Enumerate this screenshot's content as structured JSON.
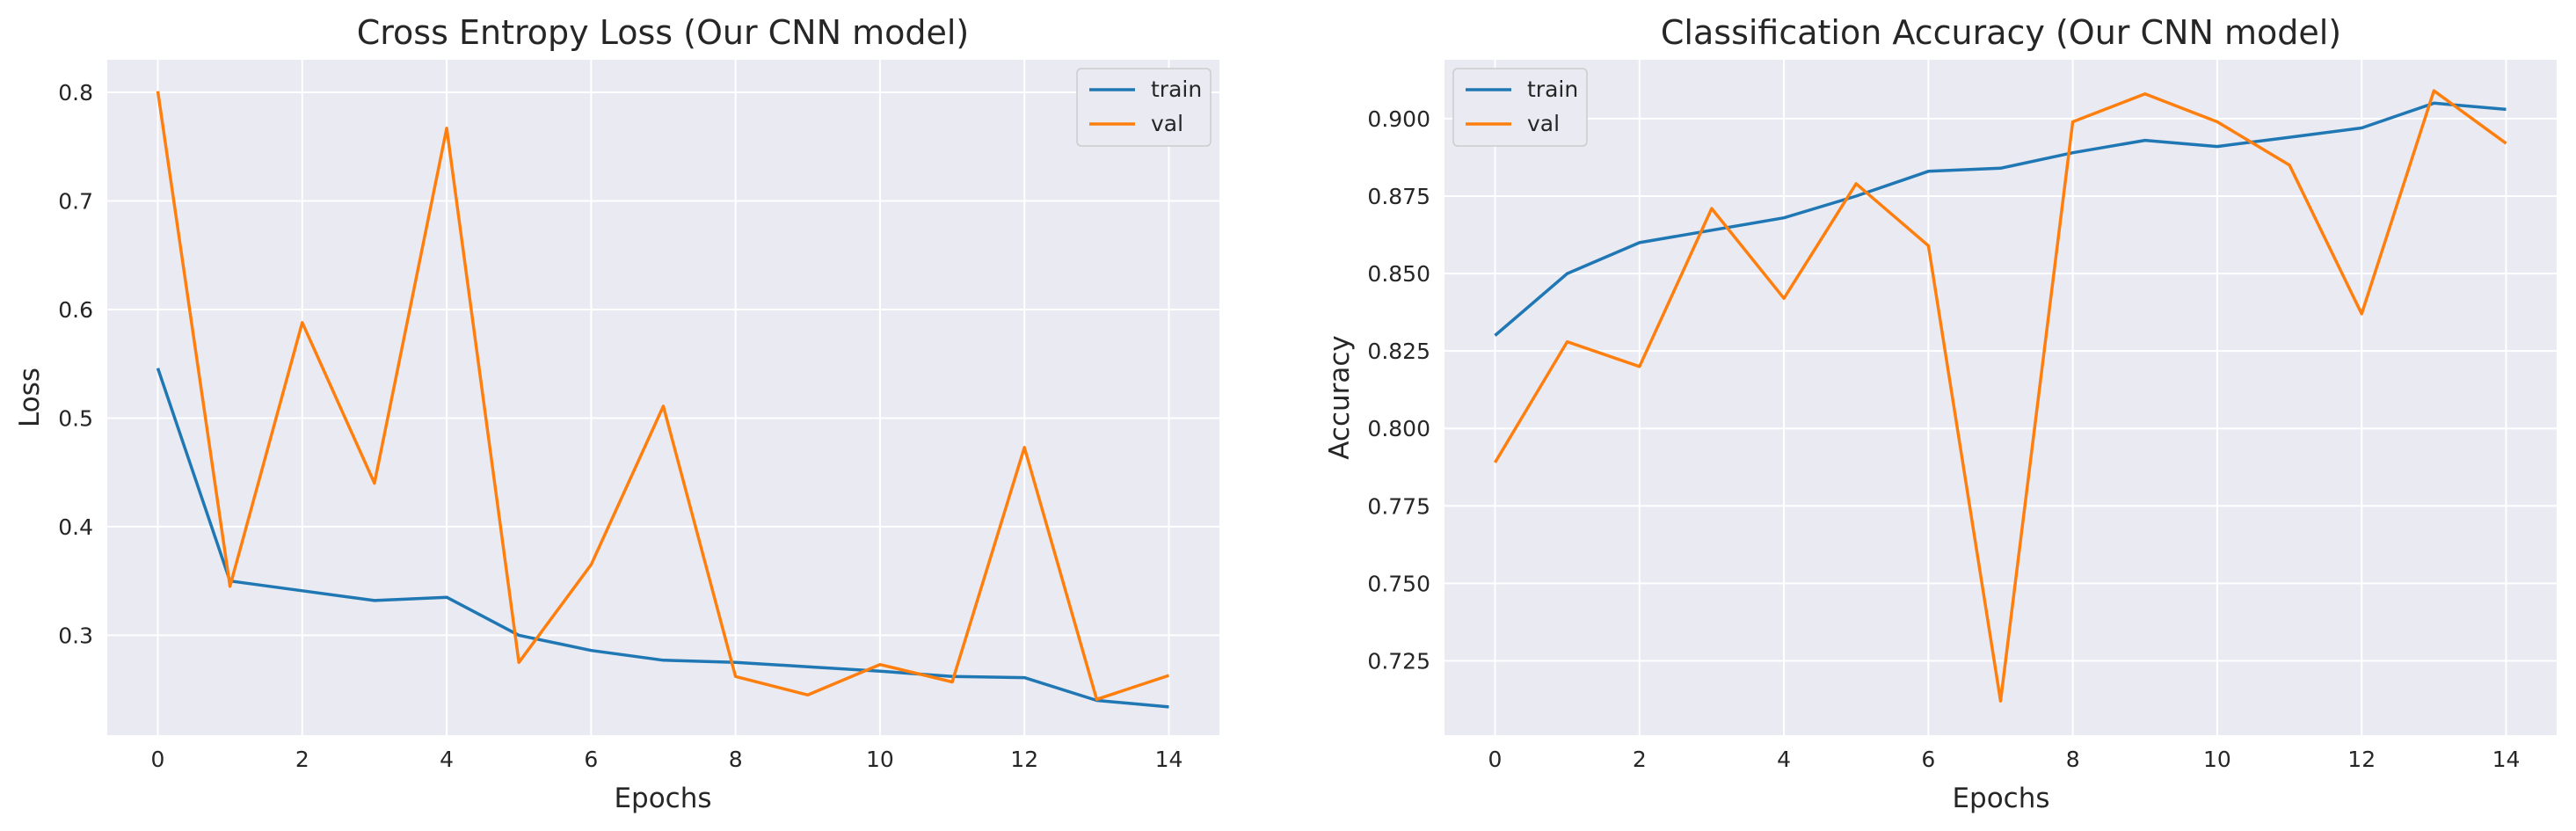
{
  "chart_data": [
    {
      "type": "line",
      "title": "Cross Entropy Loss (Our CNN model)",
      "xlabel": "Epochs",
      "ylabel": "Loss",
      "x": [
        0,
        1,
        2,
        3,
        4,
        5,
        6,
        7,
        8,
        9,
        10,
        11,
        12,
        13,
        14
      ],
      "xticks": [
        0,
        2,
        4,
        6,
        8,
        10,
        12,
        14
      ],
      "yticks": [
        0.3,
        0.4,
        0.5,
        0.6,
        0.7,
        0.8
      ],
      "xlim": [
        -0.7,
        14.7
      ],
      "ylim": [
        0.208,
        0.83
      ],
      "grid": true,
      "legend": "top-right",
      "series": [
        {
          "name": "train",
          "color": "#1f77b4",
          "values": [
            0.546,
            0.35,
            0.341,
            0.332,
            0.335,
            0.3,
            0.286,
            0.277,
            0.275,
            0.271,
            0.267,
            0.262,
            0.261,
            0.24,
            0.234
          ]
        },
        {
          "name": "val",
          "color": "#ff7f0e",
          "values": [
            0.801,
            0.345,
            0.588,
            0.44,
            0.767,
            0.275,
            0.365,
            0.511,
            0.262,
            0.245,
            0.273,
            0.257,
            0.473,
            0.241,
            0.263
          ]
        }
      ]
    },
    {
      "type": "line",
      "title": "Classification Accuracy (Our CNN model)",
      "xlabel": "Epochs",
      "ylabel": "Accuracy",
      "x": [
        0,
        1,
        2,
        3,
        4,
        5,
        6,
        7,
        8,
        9,
        10,
        11,
        12,
        13,
        14
      ],
      "xticks": [
        0,
        2,
        4,
        6,
        8,
        10,
        12,
        14
      ],
      "yticks": [
        0.725,
        0.75,
        0.775,
        0.8,
        0.825,
        0.85,
        0.875,
        0.9
      ],
      "ytick_labels": [
        "0.725",
        "0.750",
        "0.775",
        "0.800",
        "0.825",
        "0.850",
        "0.875",
        "0.900"
      ],
      "xlim": [
        -0.7,
        14.7
      ],
      "ylim": [
        0.701,
        0.919
      ],
      "grid": true,
      "legend": "top-left",
      "series": [
        {
          "name": "train",
          "color": "#1f77b4",
          "values": [
            0.83,
            0.85,
            0.86,
            0.864,
            0.868,
            0.875,
            0.883,
            0.884,
            0.889,
            0.893,
            0.891,
            0.894,
            0.897,
            0.905,
            0.903
          ]
        },
        {
          "name": "val",
          "color": "#ff7f0e",
          "values": [
            0.789,
            0.828,
            0.82,
            0.871,
            0.842,
            0.879,
            0.859,
            0.712,
            0.899,
            0.908,
            0.899,
            0.885,
            0.837,
            0.909,
            0.892
          ]
        }
      ]
    }
  ]
}
